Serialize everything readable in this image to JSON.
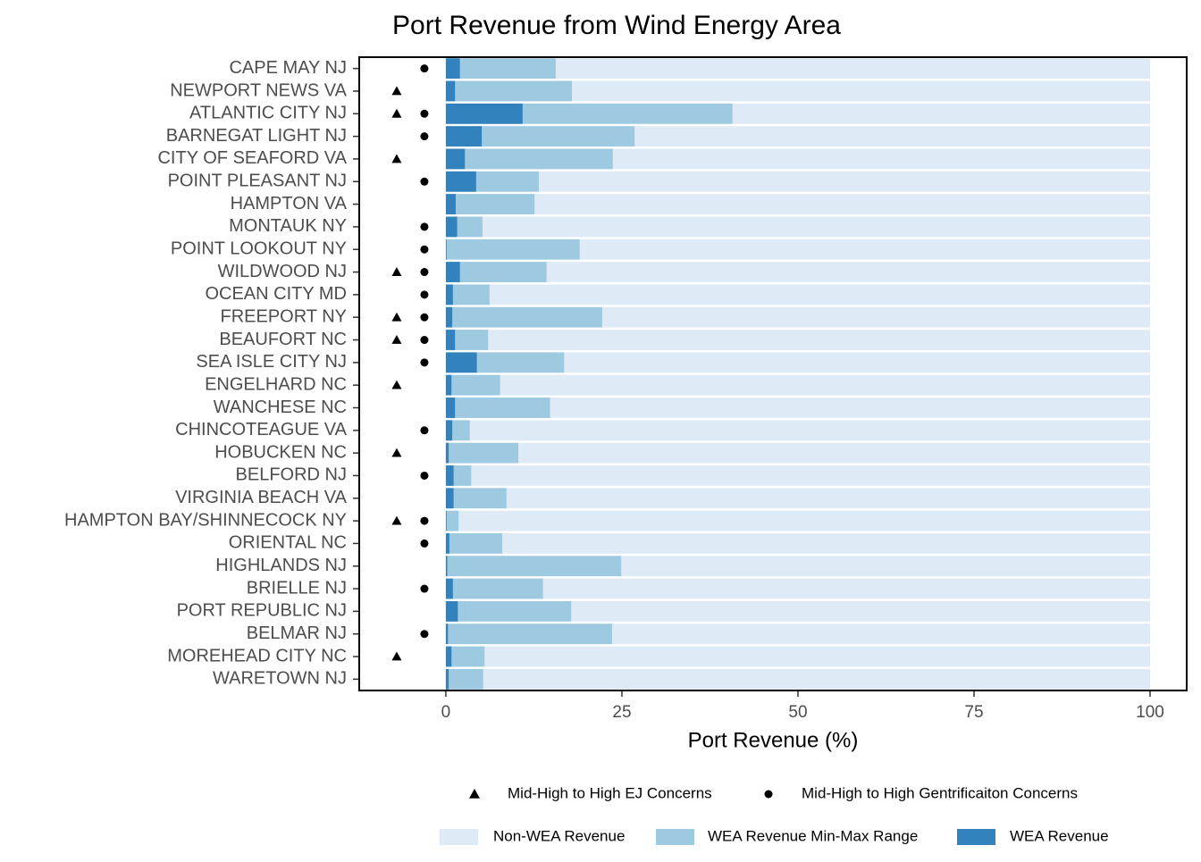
{
  "chart_data": {
    "type": "overlay-barh",
    "title": "Port Revenue from Wind Energy Area",
    "x_label": "Port Revenue (%)",
    "categories": [
      "CAPE MAY NJ",
      "NEWPORT NEWS VA",
      "ATLANTIC CITY NJ",
      "BARNEGAT LIGHT NJ",
      "CITY OF SEAFORD VA",
      "POINT PLEASANT NJ",
      "HAMPTON VA",
      "MONTAUK NY",
      "POINT LOOKOUT NY",
      "WILDWOOD NJ",
      "OCEAN CITY MD",
      "FREEPORT NY",
      "BEAUFORT NC",
      "SEA ISLE CITY NJ",
      "ENGELHARD NC",
      "WANCHESE NC",
      "CHINCOTEAGUE VA",
      "HOBUCKEN NC",
      "BELFORD NJ",
      "VIRGINIA BEACH VA",
      "HAMPTON BAY/SHINNECOCK NY",
      "ORIENTAL NC",
      "HIGHLANDS NJ",
      "BRIELLE NJ",
      "PORT REPUBLIC NJ",
      "BELMAR NJ",
      "MOREHEAD CITY NC",
      "WARETOWN NJ"
    ],
    "series": [
      {
        "name": "Non-WEA Revenue",
        "color": "#deebf7",
        "values": [
          100,
          100,
          100,
          100,
          100,
          100,
          100,
          100,
          100,
          100,
          100,
          100,
          100,
          100,
          100,
          100,
          100,
          100,
          100,
          100,
          100,
          100,
          100,
          100,
          100,
          100,
          100,
          100
        ]
      },
      {
        "name": "WEA Revenue Min-Max Range",
        "color": "#9ecae1",
        "values": [
          15.6,
          17.9,
          40.7,
          26.8,
          23.7,
          13.2,
          12.6,
          5.2,
          19.0,
          14.3,
          6.2,
          22.2,
          6.0,
          16.8,
          7.7,
          14.8,
          3.4,
          10.3,
          3.6,
          8.6,
          1.8,
          8.0,
          24.9,
          13.8,
          17.8,
          23.6,
          5.5,
          5.3
        ]
      },
      {
        "name": "WEA Revenue",
        "color": "#3182bd",
        "values": [
          2.0,
          1.3,
          10.9,
          5.1,
          2.7,
          4.3,
          1.4,
          1.6,
          0.1,
          2.0,
          1.0,
          0.9,
          1.3,
          4.4,
          0.8,
          1.3,
          0.9,
          0.4,
          1.1,
          1.1,
          0.1,
          0.5,
          0.2,
          1.0,
          1.7,
          0.3,
          0.8,
          0.4
        ]
      }
    ],
    "markers": [
      {
        "name": "Mid-High to High EJ Concerns",
        "shape": "triangle",
        "flags": [
          false,
          true,
          true,
          false,
          true,
          false,
          false,
          false,
          false,
          true,
          false,
          true,
          true,
          false,
          true,
          false,
          false,
          true,
          false,
          false,
          true,
          false,
          false,
          false,
          false,
          false,
          true,
          false
        ]
      },
      {
        "name": "Mid-High to High Gentrificaiton Concerns",
        "shape": "circle",
        "flags": [
          true,
          false,
          true,
          true,
          false,
          true,
          false,
          true,
          true,
          true,
          true,
          true,
          true,
          true,
          false,
          false,
          true,
          false,
          true,
          false,
          true,
          true,
          false,
          true,
          false,
          true,
          false,
          false
        ]
      }
    ],
    "xlim": [
      -12.3,
      105.2
    ],
    "xticks": [
      0,
      25,
      50,
      75,
      100
    ],
    "grid": false
  }
}
